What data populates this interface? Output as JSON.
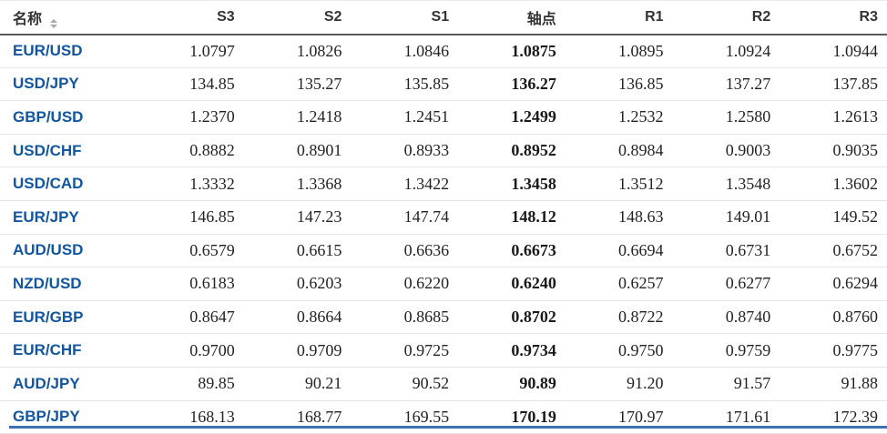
{
  "colors": {
    "link_blue": "#1256a0",
    "accent_blue": "#3a71b5",
    "header_text": "#333333",
    "number_text": "#232323",
    "divider": "#e6e6e6",
    "header_rule": "#5a5a5a"
  },
  "table": {
    "columns": [
      {
        "key": "name",
        "label": "名称"
      },
      {
        "key": "s3",
        "label": "S3"
      },
      {
        "key": "s2",
        "label": "S2"
      },
      {
        "key": "s1",
        "label": "S1"
      },
      {
        "key": "pivot",
        "label": "轴点"
      },
      {
        "key": "r1",
        "label": "R1"
      },
      {
        "key": "r2",
        "label": "R2"
      },
      {
        "key": "r3",
        "label": "R3"
      }
    ],
    "pivot_column_index": 3,
    "rows": [
      {
        "pair": "EUR/USD",
        "values": [
          "1.0797",
          "1.0826",
          "1.0846",
          "1.0875",
          "1.0895",
          "1.0924",
          "1.0944"
        ]
      },
      {
        "pair": "USD/JPY",
        "values": [
          "134.85",
          "135.27",
          "135.85",
          "136.27",
          "136.85",
          "137.27",
          "137.85"
        ]
      },
      {
        "pair": "GBP/USD",
        "values": [
          "1.2370",
          "1.2418",
          "1.2451",
          "1.2499",
          "1.2532",
          "1.2580",
          "1.2613"
        ]
      },
      {
        "pair": "USD/CHF",
        "values": [
          "0.8882",
          "0.8901",
          "0.8933",
          "0.8952",
          "0.8984",
          "0.9003",
          "0.9035"
        ]
      },
      {
        "pair": "USD/CAD",
        "values": [
          "1.3332",
          "1.3368",
          "1.3422",
          "1.3458",
          "1.3512",
          "1.3548",
          "1.3602"
        ]
      },
      {
        "pair": "EUR/JPY",
        "values": [
          "146.85",
          "147.23",
          "147.74",
          "148.12",
          "148.63",
          "149.01",
          "149.52"
        ]
      },
      {
        "pair": "AUD/USD",
        "values": [
          "0.6579",
          "0.6615",
          "0.6636",
          "0.6673",
          "0.6694",
          "0.6731",
          "0.6752"
        ]
      },
      {
        "pair": "NZD/USD",
        "values": [
          "0.6183",
          "0.6203",
          "0.6220",
          "0.6240",
          "0.6257",
          "0.6277",
          "0.6294"
        ]
      },
      {
        "pair": "EUR/GBP",
        "values": [
          "0.8647",
          "0.8664",
          "0.8685",
          "0.8702",
          "0.8722",
          "0.8740",
          "0.8760"
        ]
      },
      {
        "pair": "EUR/CHF",
        "values": [
          "0.9700",
          "0.9709",
          "0.9725",
          "0.9734",
          "0.9750",
          "0.9759",
          "0.9775"
        ]
      },
      {
        "pair": "AUD/JPY",
        "values": [
          "89.85",
          "90.21",
          "90.52",
          "90.89",
          "91.20",
          "91.57",
          "91.88"
        ]
      },
      {
        "pair": "GBP/JPY",
        "values": [
          "168.13",
          "168.77",
          "169.55",
          "170.19",
          "170.97",
          "171.61",
          "172.39"
        ]
      }
    ]
  }
}
